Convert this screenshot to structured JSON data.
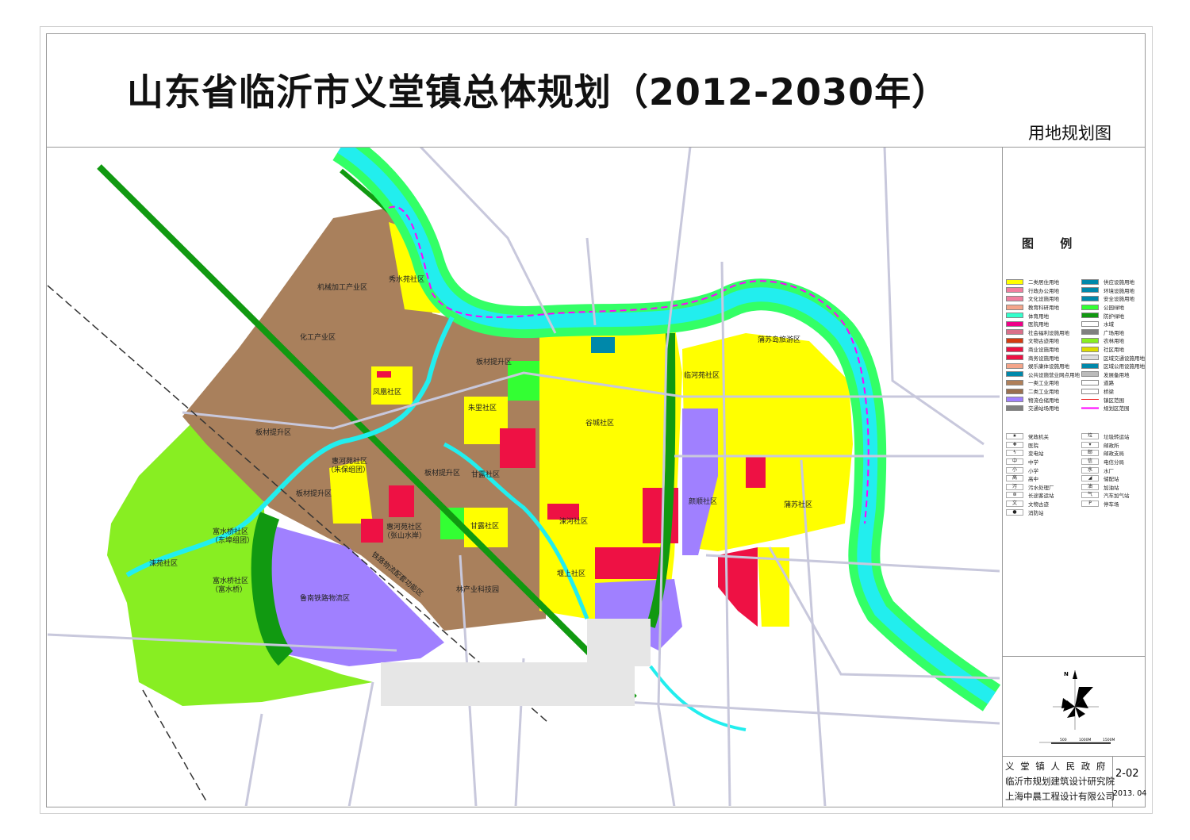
{
  "title": "山东省临沂市义堂镇总体规划（2012-2030年）",
  "subtitle": "用地规划图",
  "legend": {
    "heading": "图 例",
    "landuse_col1": [
      {
        "label": "二类居住用地",
        "color": "#ffff00"
      },
      {
        "label": "行政办公用地",
        "color": "#f07fa0"
      },
      {
        "label": "文化设施用地",
        "color": "#f07fa0"
      },
      {
        "label": "教育科研用地",
        "color": "#f4a58a"
      },
      {
        "label": "体育用地",
        "color": "#33ffcc"
      },
      {
        "label": "医院用地",
        "color": "#ee0088"
      },
      {
        "label": "社会福利设施用地",
        "color": "#d9708a"
      },
      {
        "label": "文物古迹用地",
        "color": "#d43c10"
      },
      {
        "label": "商业设施用地",
        "color": "#ee1144"
      },
      {
        "label": "商务设施用地",
        "color": "#ee1144"
      },
      {
        "label": "娱乐康体设施用地",
        "color": "#f4a58a"
      },
      {
        "label": "公共设施营业网点用地",
        "color": "#0088aa"
      },
      {
        "label": "一类工业用地",
        "color": "#b0805a"
      },
      {
        "label": "二类工业用地",
        "color": "#9a7050"
      },
      {
        "label": "物流仓储用地",
        "color": "#a080ff"
      },
      {
        "label": "交通站场用地",
        "color": "#808080"
      }
    ],
    "landuse_col2": [
      {
        "label": "供应设施用地",
        "color": "#0088aa"
      },
      {
        "label": "环境设施用地",
        "color": "#0088aa"
      },
      {
        "label": "安全设施用地",
        "color": "#0088aa"
      },
      {
        "label": "公园绿地",
        "color": "#33ff33"
      },
      {
        "label": "防护绿地",
        "color": "#119911"
      },
      {
        "label": "水域",
        "color": "#ffffff"
      },
      {
        "label": "广场用地",
        "color": "#808080"
      },
      {
        "label": "农林用地",
        "color": "#88ee22"
      },
      {
        "label": "社区用地",
        "color": "#dddd00"
      },
      {
        "label": "区域交通设施用地",
        "color": "#dddddd"
      },
      {
        "label": "区域公用设施用地",
        "color": "#0088aa"
      },
      {
        "label": "发展备用地",
        "color": "#bbbbbb"
      },
      {
        "label": "道路",
        "color": "#ffffff"
      },
      {
        "label": "桥梁",
        "color": "#ffffff"
      },
      {
        "label": "镇区范围",
        "color": "#ee2222"
      },
      {
        "label": "规划区范围",
        "color": "#ff00ff"
      }
    ],
    "symbols_col1": [
      {
        "label": "党政机关",
        "glyph": "★"
      },
      {
        "label": "医院",
        "glyph": "✚"
      },
      {
        "label": "变电站",
        "glyph": "ϟ"
      },
      {
        "label": "中学",
        "glyph": "中"
      },
      {
        "label": "小学",
        "glyph": "小"
      },
      {
        "label": "高中",
        "glyph": "高"
      },
      {
        "label": "污水处理厂",
        "glyph": "污"
      },
      {
        "label": "长途客运站",
        "glyph": "⊛"
      },
      {
        "label": "文物古迹",
        "glyph": "文"
      },
      {
        "label": "消防站",
        "glyph": "●"
      }
    ],
    "symbols_col2": [
      {
        "label": "垃圾转运站",
        "glyph": "垃"
      },
      {
        "label": "邮政所",
        "glyph": "▾"
      },
      {
        "label": "邮政支局",
        "glyph": "邮"
      },
      {
        "label": "电信分局",
        "glyph": "信"
      },
      {
        "label": "水厂",
        "glyph": "水"
      },
      {
        "label": "储配站",
        "glyph": "◢"
      },
      {
        "label": "加油站",
        "glyph": "油"
      },
      {
        "label": "汽车加气站",
        "glyph": "气"
      },
      {
        "label": "停车场",
        "glyph": "P"
      }
    ]
  },
  "compass": {
    "north_label": "N"
  },
  "scale_bar": {
    "ticks": [
      "500",
      "1000M",
      "1500M"
    ]
  },
  "title_block": {
    "org1": "义 堂 镇 人 民 政 府",
    "org2": "临沂市规划建筑设计研究院",
    "org3": "上海中晨工程设计有限公司",
    "drawing_no": "2-02",
    "date": "2013. 04"
  },
  "map_labels": [
    "机械加工产业区",
    "秀水苑社区",
    "化工产业区",
    "板材提升区",
    "凤凰社区",
    "朱里社区",
    "谷城社区",
    "临河苑社区",
    "蒲苏岛旅游区",
    "板材提升区",
    "板材提升区",
    "甘露社区",
    "惠河苑社区",
    "（朱保组团）",
    "板材提升区",
    "惠河苑社区",
    "（张山水岸）",
    "甘露社区",
    "涑河社区",
    "颜顺社区",
    "蒲苏社区",
    "堰上社区",
    "林产业科技园",
    "鲁南铁路物流区",
    "铁路物流配套功能区",
    "富水桥社区",
    "（东埠组团）",
    "涑苑社区",
    "富水桥社区",
    "（富水桥）"
  ]
}
